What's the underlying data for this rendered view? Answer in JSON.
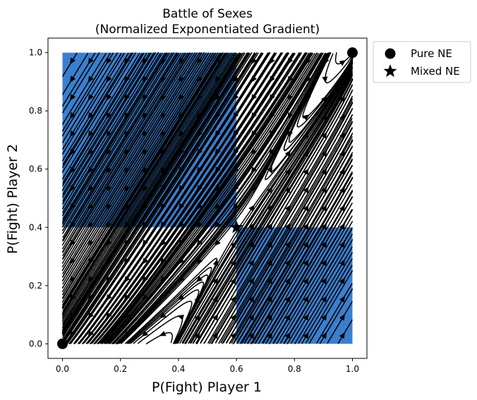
{
  "chart_data": {
    "type": "streamplot",
    "title": [
      "Battle of Sexes",
      "(Normalized Exponentiated Gradient)"
    ],
    "xlabel": "P(Fight) Player 1",
    "ylabel": "P(Fight) Player 2",
    "xlim": [
      -0.05,
      1.05
    ],
    "ylim": [
      -0.05,
      1.05
    ],
    "xticks": [
      0.0,
      0.2,
      0.4,
      0.6,
      0.8,
      1.0
    ],
    "yticks": [
      0.0,
      0.2,
      0.4,
      0.6,
      0.8,
      1.0
    ],
    "xtick_labels": [
      "0.0",
      "0.2",
      "0.4",
      "0.6",
      "0.8",
      "1.0"
    ],
    "ytick_labels": [
      "0.0",
      "0.2",
      "0.4",
      "0.6",
      "0.8",
      "1.0"
    ],
    "grid": false,
    "shaded_regions": [
      {
        "x": [
          0.0,
          0.6
        ],
        "y": [
          0.4,
          1.0
        ],
        "color": "#3a7fce"
      },
      {
        "x": [
          0.6,
          1.0
        ],
        "y": [
          0.0,
          0.4
        ],
        "color": "#3a7fce"
      }
    ],
    "pure_ne": [
      [
        0.0,
        0.0
      ],
      [
        1.0,
        1.0
      ]
    ],
    "mixed_ne": [
      [
        0.6,
        0.4
      ]
    ],
    "legend": {
      "placement": "outside-top-right",
      "entries": [
        {
          "label": "Pure NE",
          "marker": "circle"
        },
        {
          "label": "Mixed NE",
          "marker": "star"
        }
      ]
    },
    "dynamics": {
      "saddle": [
        0.6,
        0.4
      ],
      "attractors": [
        [
          0.0,
          0.0
        ],
        [
          1.0,
          1.0
        ]
      ],
      "stable_direction": [
        0.47,
        0.88
      ],
      "unstable_direction": [
        0.61,
        0.79
      ]
    },
    "line_color": "#000000"
  }
}
